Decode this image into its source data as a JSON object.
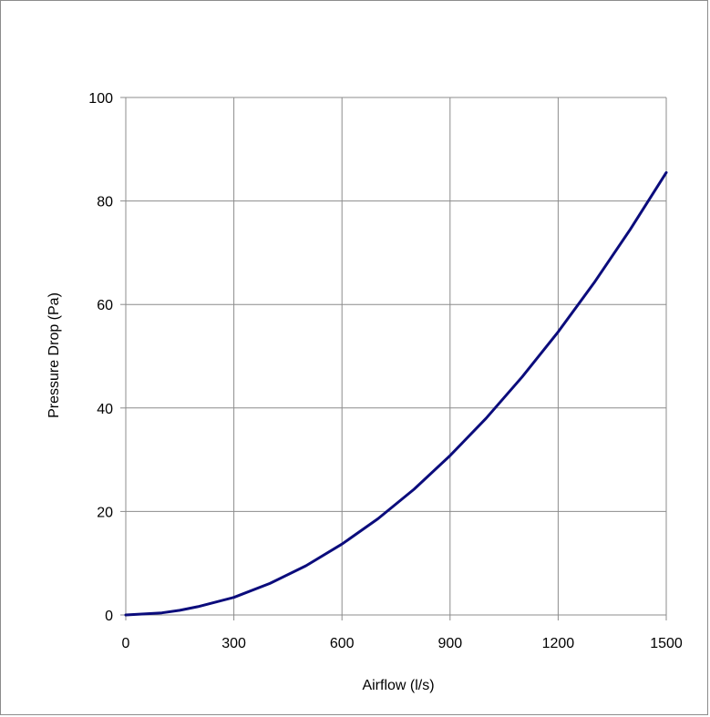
{
  "chart_data": {
    "type": "line",
    "title": "",
    "xlabel": "Airflow (l/s)",
    "ylabel": "Pressure Drop (Pa)",
    "xlim": [
      0,
      1500
    ],
    "ylim": [
      0,
      100
    ],
    "x_ticks": [
      0,
      300,
      600,
      900,
      1200,
      1500
    ],
    "y_ticks": [
      0,
      20,
      40,
      60,
      80,
      100
    ],
    "grid": true,
    "legend": "none",
    "series": [
      {
        "color": "#0b0c7c",
        "x": [
          0,
          100,
          150,
          200,
          300,
          400,
          500,
          600,
          700,
          800,
          900,
          1000,
          1100,
          1200,
          1300,
          1400,
          1500
        ],
        "y": [
          0,
          0.4,
          0.9,
          1.6,
          3.4,
          6.1,
          9.5,
          13.7,
          18.6,
          24.3,
          30.8,
          38.0,
          46.0,
          54.7,
          64.2,
          74.5,
          85.5
        ]
      }
    ],
    "gridline_color": "#8c8c8c",
    "axis_color": "#8c8c8c"
  }
}
